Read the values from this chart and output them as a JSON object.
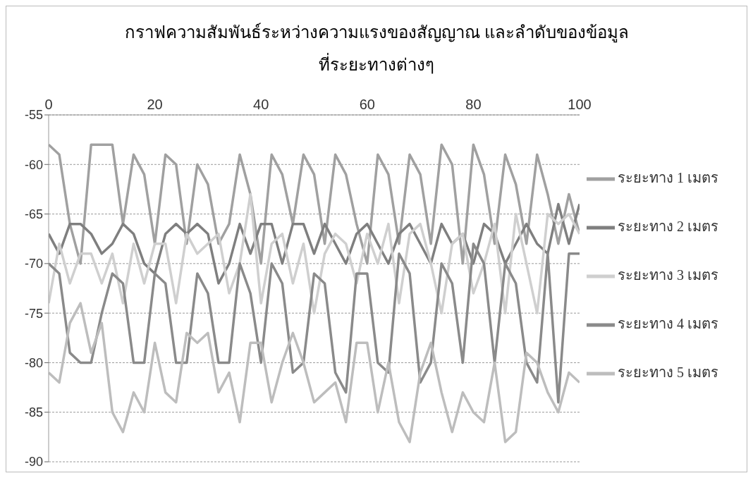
{
  "chart_data": {
    "type": "line",
    "title": "กราฟความสัมพันธ์ระหว่างความแรงของสัญญาณ และลำดับของข้อมูล\nที่ระยะทางต่างๆ",
    "x": [
      0,
      2,
      4,
      6,
      8,
      10,
      12,
      14,
      16,
      18,
      20,
      22,
      24,
      26,
      28,
      30,
      32,
      34,
      36,
      38,
      40,
      42,
      44,
      46,
      48,
      50,
      52,
      54,
      56,
      58,
      60,
      62,
      64,
      66,
      68,
      70,
      72,
      74,
      76,
      78,
      80,
      82,
      84,
      86,
      88,
      90,
      92,
      94,
      96,
      98,
      100
    ],
    "series": [
      {
        "name": "ระยะทาง 1 เมตร",
        "color": "#a0a0a0",
        "values": [
          -58,
          -59,
          -66,
          -70,
          -58,
          -58,
          -58,
          -66,
          -59,
          -61,
          -68,
          -59,
          -60,
          -68,
          -60,
          -62,
          -68,
          -66,
          -59,
          -63,
          -70,
          -59,
          -61,
          -66,
          -59,
          -61,
          -68,
          -59,
          -61,
          -66,
          -70,
          -59,
          -61,
          -68,
          -59,
          -61,
          -68,
          -58,
          -60,
          -70,
          -58,
          -61,
          -68,
          -59,
          -62,
          -68,
          -59,
          -63,
          -68,
          -63,
          -67
        ]
      },
      {
        "name": "ระยะทาง 2 เมตร",
        "color": "#7f7f7f",
        "values": [
          -67,
          -69,
          -66,
          -66,
          -67,
          -69,
          -68,
          -66,
          -67,
          -70,
          -71,
          -67,
          -66,
          -67,
          -66,
          -67,
          -72,
          -70,
          -66,
          -69,
          -66,
          -66,
          -70,
          -66,
          -66,
          -69,
          -66,
          -68,
          -70,
          -67,
          -66,
          -68,
          -70,
          -67,
          -66,
          -68,
          -70,
          -66,
          -68,
          -67,
          -70,
          -66,
          -67,
          -70,
          -68,
          -66,
          -68,
          -69,
          -64,
          -68,
          -64
        ]
      },
      {
        "name": "ระยะทาง 3 เมตร",
        "color": "#cfcfcf",
        "values": [
          -74,
          -68,
          -72,
          -69,
          -69,
          -72,
          -69,
          -74,
          -68,
          -72,
          -68,
          -68,
          -74,
          -67,
          -69,
          -68,
          -67,
          -73,
          -70,
          -63,
          -74,
          -68,
          -67,
          -72,
          -68,
          -75,
          -69,
          -67,
          -68,
          -72,
          -67,
          -70,
          -66,
          -74,
          -67,
          -66,
          -70,
          -75,
          -68,
          -67,
          -73,
          -70,
          -66,
          -75,
          -65,
          -70,
          -75,
          -65,
          -66,
          -65,
          -67
        ]
      },
      {
        "name": "ระยะทาง 4 เมตร",
        "color": "#8a8a8a",
        "values": [
          -70,
          -71,
          -79,
          -80,
          -80,
          -75,
          -71,
          -72,
          -80,
          -80,
          -71,
          -72,
          -80,
          -80,
          -71,
          -73,
          -80,
          -80,
          -70,
          -73,
          -80,
          -70,
          -72,
          -81,
          -80,
          -71,
          -72,
          -81,
          -83,
          -71,
          -71,
          -80,
          -81,
          -69,
          -71,
          -82,
          -80,
          -70,
          -72,
          -80,
          -68,
          -70,
          -80,
          -70,
          -72,
          -80,
          -82,
          -69,
          -84,
          -69,
          -69
        ]
      },
      {
        "name": "ระยะทาง 5 เมตร",
        "color": "#bdbdbd",
        "values": [
          -81,
          -82,
          -76,
          -74,
          -79,
          -76,
          -85,
          -87,
          -83,
          -85,
          -78,
          -83,
          -84,
          -77,
          -78,
          -77,
          -83,
          -81,
          -86,
          -78,
          -78,
          -84,
          -80,
          -77,
          -80,
          -84,
          -83,
          -82,
          -86,
          -78,
          -78,
          -85,
          -80,
          -86,
          -88,
          -81,
          -78,
          -83,
          -87,
          -83,
          -85,
          -86,
          -80,
          -88,
          -87,
          -79,
          -80,
          -83,
          -85,
          -81,
          -82
        ]
      }
    ],
    "xlim": [
      0,
      100
    ],
    "xticks": [
      0,
      20,
      40,
      60,
      80,
      100
    ],
    "ylim": [
      -90,
      -55
    ],
    "yticks": [
      -90,
      -85,
      -80,
      -75,
      -70,
      -65,
      -60,
      -55
    ],
    "grid": "y",
    "legend": "right",
    "marker": "none",
    "line_style": "solid"
  }
}
